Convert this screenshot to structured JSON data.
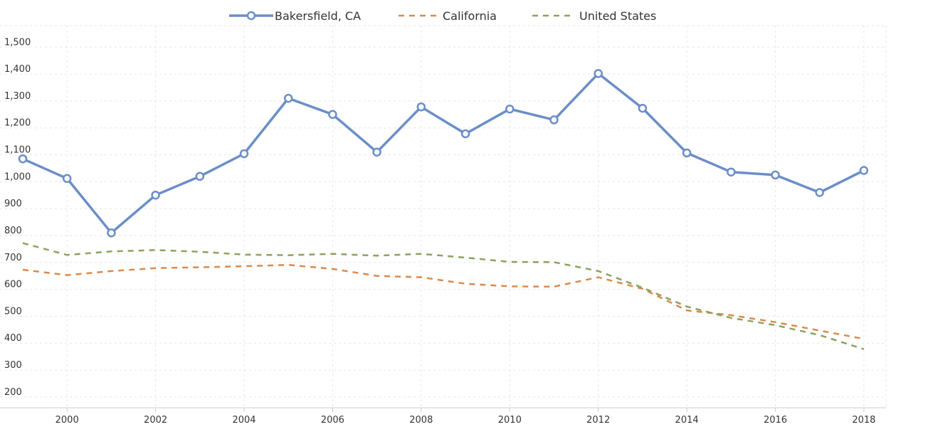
{
  "chart_data": {
    "type": "line",
    "title": "",
    "xlabel": "",
    "ylabel": "",
    "x": [
      1999,
      2000,
      2001,
      2002,
      2003,
      2004,
      2005,
      2006,
      2007,
      2008,
      2009,
      2010,
      2011,
      2012,
      2013,
      2014,
      2015,
      2016,
      2017,
      2018
    ],
    "x_ticks": [
      "2000",
      "2002",
      "2004",
      "2006",
      "2008",
      "2010",
      "2012",
      "2014",
      "2016",
      "2018"
    ],
    "y_ticks": [
      "200",
      "300",
      "400",
      "500",
      "600",
      "700",
      "800",
      "900",
      "1,000",
      "1,100",
      "1,200",
      "1,300",
      "1,400",
      "1,500"
    ],
    "xlim": [
      1999,
      2018.5
    ],
    "ylim": [
      160,
      1580
    ],
    "grid": true,
    "legend_position": "top-center",
    "series": [
      {
        "name": "Bakersfield, CA",
        "color": "#6b8ec7",
        "style": "solid-markers",
        "values": [
          1085,
          1012,
          810,
          950,
          1020,
          1104,
          1310,
          1250,
          1110,
          1278,
          1178,
          1270,
          1230,
          1402,
          1273,
          1107,
          1036,
          1025,
          960,
          1042
        ]
      },
      {
        "name": "California",
        "color": "#d98a4e",
        "style": "dashed",
        "values": [
          673,
          653,
          668,
          679,
          682,
          686,
          691,
          676,
          650,
          645,
          621,
          611,
          610,
          645,
          602,
          522,
          504,
          478,
          447,
          416
        ]
      },
      {
        "name": "United States",
        "color": "#8aa35d",
        "style": "dashed",
        "values": [
          772,
          728,
          741,
          746,
          740,
          729,
          727,
          732,
          725,
          732,
          718,
          702,
          701,
          668,
          606,
          536,
          494,
          467,
          430,
          378
        ]
      }
    ]
  }
}
